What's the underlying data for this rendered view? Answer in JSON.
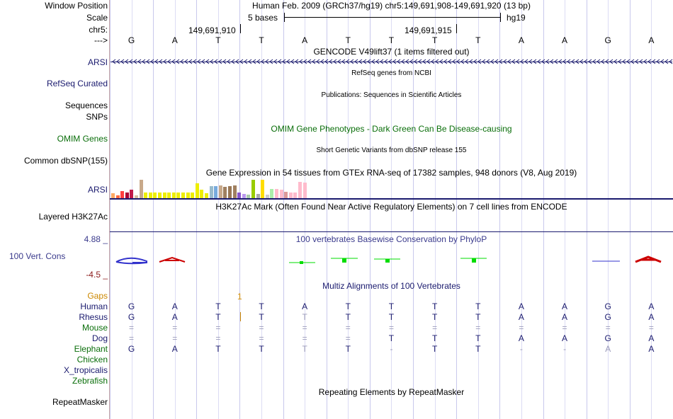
{
  "header": {
    "window_position_label": "Window Position",
    "window_position_value": "Human Feb. 2009 (GRCh37/hg19)   chr5:149,691,908-149,691,920 (13 bp)",
    "scale_label": "Scale",
    "scale_text": "5 bases",
    "scale_assembly": "hg19",
    "chr_label": "chr5:",
    "coord_1": "149,691,910",
    "coord_2": "149,691,915",
    "strand_label": "--->"
  },
  "sequence": [
    "G",
    "A",
    "T",
    "T",
    "A",
    "T",
    "T",
    "T",
    "T",
    "A",
    "A",
    "G",
    "A"
  ],
  "tracks": {
    "gencode_title": "GENCODE V49lift37 (1 items filtered out)",
    "gencode_gene": "ARSI",
    "refseq_title": "RefSeq genes from NCBI",
    "refseq_label": "RefSeq Curated",
    "publications_title": "Publications: Sequences in Scientific Articles",
    "sequences_label": "Sequences",
    "snps_label": "SNPs",
    "omim_title": "OMIM Gene Phenotypes - Dark Green Can Be Disease-causing",
    "omim_label": "OMIM Genes",
    "dbsnp_title": "Short Genetic Variants from dbSNP release 155",
    "dbsnp_label": "Common dbSNP(155)",
    "gtex_title": "Gene Expression in 54 tissues from GTEx RNA-seq of 17382 samples, 948 donors (V8, Aug 2019)",
    "gtex_gene": "ARSI",
    "h3k27ac_title": "H3K27Ac Mark (Often Found Near Active Regulatory Elements) on 7 cell lines from ENCODE",
    "h3k27ac_label": "Layered H3K27Ac",
    "phylop_title": "100 vertebrates Basewise Conservation by PhyloP",
    "phylop_label": "100 Vert. Cons",
    "phylop_max": "4.88 _",
    "phylop_min": "-4.5 _",
    "multiz_title": "Multiz Alignments of 100 Vertebrates",
    "gaps_label": "Gaps",
    "gaps_value": "1",
    "repeat_title": "Repeating Elements by RepeatMasker",
    "repeat_label": "RepeatMasker"
  },
  "gtex_bars": [
    {
      "color": "#ffaa66",
      "value": 0.25
    },
    {
      "color": "#ff6a3d",
      "value": 0.15
    },
    {
      "color": "#ff3f3f",
      "value": 0.4
    },
    {
      "color": "#aa0033",
      "value": 0.3
    },
    {
      "color": "#c01a4a",
      "value": 0.45
    },
    {
      "color": "#d9bfa0",
      "value": 0.15
    },
    {
      "color": "#c8a98a",
      "value": 1.0
    },
    {
      "color": "#eeee00",
      "value": 0.3
    },
    {
      "color": "#eeee00",
      "value": 0.32
    },
    {
      "color": "#eeee00",
      "value": 0.3
    },
    {
      "color": "#eeee00",
      "value": 0.3
    },
    {
      "color": "#eeee00",
      "value": 0.3
    },
    {
      "color": "#eeee00",
      "value": 0.3
    },
    {
      "color": "#eeee00",
      "value": 0.3
    },
    {
      "color": "#eeee00",
      "value": 0.3
    },
    {
      "color": "#eeee00",
      "value": 0.3
    },
    {
      "color": "#eeee00",
      "value": 0.3
    },
    {
      "color": "#eeee00",
      "value": 0.3
    },
    {
      "color": "#eeee00",
      "value": 0.82
    },
    {
      "color": "#eeee00",
      "value": 0.45
    },
    {
      "color": "#eeee00",
      "value": 0.25
    },
    {
      "color": "#99bbcc",
      "value": 0.65
    },
    {
      "color": "#77aadd",
      "value": 0.65
    },
    {
      "color": "#c8a98a",
      "value": 0.7
    },
    {
      "color": "#a08060",
      "value": 0.6
    },
    {
      "color": "#997755",
      "value": 0.65
    },
    {
      "color": "#a08060",
      "value": 0.7
    },
    {
      "color": "#8855cc",
      "value": 0.3
    },
    {
      "color": "#bb99ee",
      "value": 0.22
    },
    {
      "color": "#aaccaa",
      "value": 0.2
    },
    {
      "color": "#99cc00",
      "value": 1.0
    },
    {
      "color": "#aaaaaa",
      "value": 0.22
    },
    {
      "color": "#ffdd00",
      "value": 1.0
    },
    {
      "color": "#cccccc",
      "value": 0.2
    },
    {
      "color": "#aaeeaa",
      "value": 0.5
    },
    {
      "color": "#ffbbcc",
      "value": 0.5
    },
    {
      "color": "#ffbbcc",
      "value": 0.45
    },
    {
      "color": "#dd9999",
      "value": 0.35
    },
    {
      "color": "#ffbbcc",
      "value": 0.3
    },
    {
      "color": "#ffbbcc",
      "value": 0.3
    },
    {
      "color": "#ffbbcc",
      "value": 0.9
    },
    {
      "color": "#ffbbcc",
      "value": 0.85
    }
  ],
  "multiz": {
    "species": [
      {
        "name": "Human",
        "color": "#1a1a6e",
        "row": [
          "G",
          "A",
          "T",
          "T",
          "A",
          "T",
          "T",
          "T",
          "T",
          "A",
          "A",
          "G",
          "A"
        ],
        "faint": []
      },
      {
        "name": "Rhesus",
        "color": "#1a1a6e",
        "row": [
          "G",
          "A",
          "T",
          "T",
          "T",
          "T",
          "T",
          "T",
          "T",
          "A",
          "A",
          "G",
          "A"
        ],
        "faint": [
          4
        ]
      },
      {
        "name": "Mouse",
        "color": "#0a6e0a",
        "row": [
          "=",
          "=",
          "=",
          "=",
          "=",
          "=",
          "=",
          "=",
          "=",
          "=",
          "=",
          "=",
          "="
        ],
        "faint": [
          0,
          1,
          2,
          3,
          4,
          5,
          6,
          7,
          8,
          9,
          10,
          11,
          12
        ]
      },
      {
        "name": "Dog",
        "color": "#1a1a6e",
        "row": [
          "=",
          "=",
          "=",
          "=",
          "=",
          "=",
          "T",
          "T",
          "T",
          "A",
          "A",
          "G",
          "A"
        ],
        "faint": [
          0,
          1,
          2,
          3,
          4,
          5
        ]
      },
      {
        "name": "Elephant",
        "color": "#0a6e0a",
        "row": [
          "G",
          "A",
          "T",
          "T",
          "T",
          "T",
          "-",
          "T",
          "T",
          "-",
          "-",
          "A",
          "A"
        ],
        "faint": [
          4,
          6,
          9,
          10,
          11
        ]
      },
      {
        "name": "Chicken",
        "color": "#0a6e0a",
        "row": [],
        "faint": []
      },
      {
        "name": "X_tropicalis",
        "color": "#1a1a6e",
        "row": [],
        "faint": []
      },
      {
        "name": "Zebrafish",
        "color": "#0a6e0a",
        "row": [],
        "faint": []
      }
    ]
  },
  "colors": {
    "navy": "#1a1a6e",
    "green": "#0a6e0a",
    "gaps_orange": "#cc8800",
    "phylop_pos": "#3333cc",
    "phylop_neg": "#cc0000",
    "phylop_green": "#00dd00"
  }
}
